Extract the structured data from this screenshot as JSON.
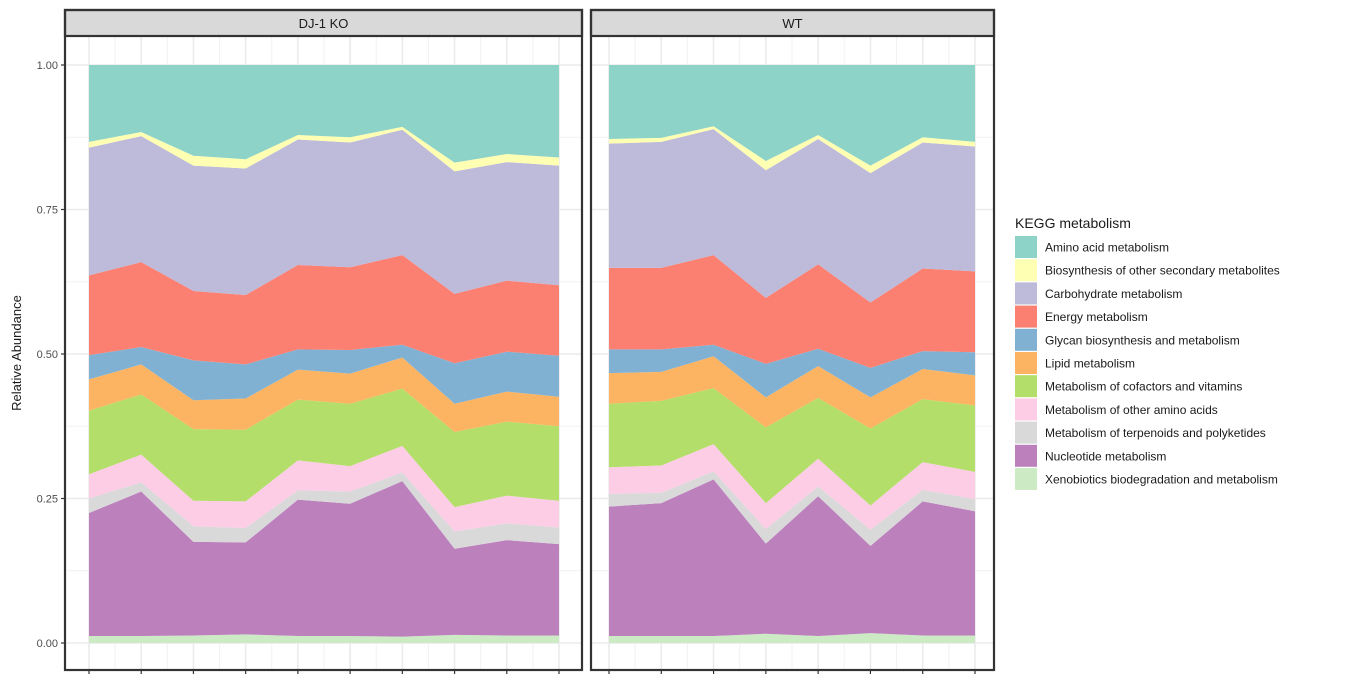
{
  "chart_data": {
    "type": "area",
    "stacked": true,
    "ylabel": "Relative Abundance",
    "yticks": [
      "0.00",
      "0.25",
      "0.50",
      "0.75",
      "1.00"
    ],
    "ylim": [
      0,
      1
    ],
    "legend": {
      "title": "KEGG metabolism",
      "position": "right"
    },
    "series": [
      {
        "name": "Xenobiotics biodegradation and metabolism",
        "color": "#CCEBC5"
      },
      {
        "name": "Nucleotide metabolism",
        "color": "#BC80BD"
      },
      {
        "name": "Metabolism of terpenoids and polyketides",
        "color": "#D9D9D9"
      },
      {
        "name": "Metabolism of other amino acids",
        "color": "#FCCDE5"
      },
      {
        "name": "Metabolism of cofactors and vitamins",
        "color": "#B3DE69"
      },
      {
        "name": "Lipid metabolism",
        "color": "#FDB462"
      },
      {
        "name": "Glycan biosynthesis and metabolism",
        "color": "#80B1D3"
      },
      {
        "name": "Energy metabolism",
        "color": "#FB8072"
      },
      {
        "name": "Carbohydrate metabolism",
        "color": "#BEBADA"
      },
      {
        "name": "Biosynthesis of other secondary metabolites",
        "color": "#FFFFB3"
      },
      {
        "name": "Amino acid metabolism",
        "color": "#8DD3C7"
      }
    ],
    "legend_order": [
      10,
      9,
      8,
      7,
      6,
      5,
      4,
      3,
      2,
      1,
      0
    ],
    "panels": [
      {
        "title": "DJ-1 KO",
        "n_samples": 10,
        "boundaries": [
          [
            0.012,
            0.012,
            0.013,
            0.015,
            0.012,
            0.012,
            0.011,
            0.014,
            0.013,
            0.013
          ],
          [
            0.225,
            0.262,
            0.175,
            0.174,
            0.248,
            0.241,
            0.28,
            0.163,
            0.178,
            0.171
          ],
          [
            0.25,
            0.278,
            0.202,
            0.199,
            0.264,
            0.262,
            0.295,
            0.193,
            0.207,
            0.2
          ],
          [
            0.292,
            0.326,
            0.246,
            0.245,
            0.316,
            0.306,
            0.341,
            0.235,
            0.255,
            0.246
          ],
          [
            0.402,
            0.43,
            0.37,
            0.369,
            0.421,
            0.414,
            0.44,
            0.365,
            0.383,
            0.375
          ],
          [
            0.456,
            0.482,
            0.42,
            0.423,
            0.473,
            0.466,
            0.494,
            0.414,
            0.435,
            0.426
          ],
          [
            0.498,
            0.512,
            0.489,
            0.482,
            0.508,
            0.507,
            0.516,
            0.484,
            0.504,
            0.497
          ],
          [
            0.636,
            0.659,
            0.609,
            0.602,
            0.654,
            0.65,
            0.671,
            0.604,
            0.627,
            0.619
          ],
          [
            0.857,
            0.877,
            0.826,
            0.821,
            0.871,
            0.866,
            0.888,
            0.816,
            0.832,
            0.826
          ],
          [
            0.867,
            0.884,
            0.843,
            0.837,
            0.879,
            0.875,
            0.893,
            0.831,
            0.846,
            0.84
          ],
          [
            1,
            1,
            1,
            1,
            1,
            1,
            1,
            1,
            1,
            1
          ]
        ]
      },
      {
        "title": "WT",
        "n_samples": 8,
        "boundaries": [
          [
            0.012,
            0.012,
            0.012,
            0.016,
            0.012,
            0.017,
            0.013,
            0.013
          ],
          [
            0.236,
            0.242,
            0.283,
            0.172,
            0.254,
            0.168,
            0.245,
            0.228
          ],
          [
            0.258,
            0.26,
            0.297,
            0.197,
            0.271,
            0.196,
            0.265,
            0.249
          ],
          [
            0.304,
            0.307,
            0.344,
            0.242,
            0.319,
            0.238,
            0.313,
            0.296
          ],
          [
            0.414,
            0.419,
            0.441,
            0.373,
            0.424,
            0.371,
            0.422,
            0.411
          ],
          [
            0.467,
            0.469,
            0.496,
            0.425,
            0.479,
            0.425,
            0.474,
            0.463
          ],
          [
            0.508,
            0.508,
            0.516,
            0.483,
            0.509,
            0.476,
            0.505,
            0.503
          ],
          [
            0.649,
            0.649,
            0.671,
            0.597,
            0.655,
            0.589,
            0.648,
            0.643
          ],
          [
            0.864,
            0.867,
            0.889,
            0.818,
            0.872,
            0.813,
            0.866,
            0.859
          ],
          [
            0.872,
            0.874,
            0.894,
            0.834,
            0.879,
            0.826,
            0.875,
            0.867
          ],
          [
            1,
            1,
            1,
            1,
            1,
            1,
            1,
            1
          ]
        ]
      }
    ]
  }
}
